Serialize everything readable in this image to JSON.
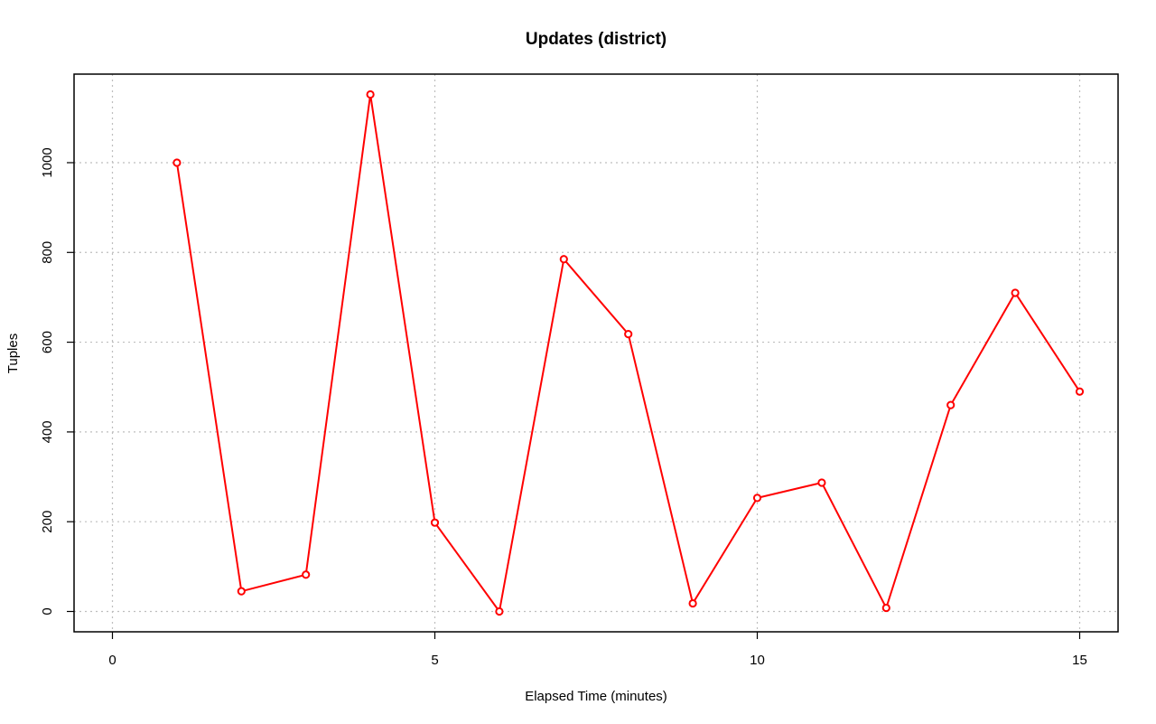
{
  "chart_data": {
    "type": "line",
    "title": "Updates (district)",
    "xlabel": "Elapsed Time (minutes)",
    "ylabel": "Tuples",
    "xlim": [
      0,
      15
    ],
    "ylim": [
      0,
      1150
    ],
    "x_ticks": [
      0,
      5,
      10,
      15
    ],
    "y_ticks": [
      0,
      200,
      400,
      600,
      800,
      1000
    ],
    "grid": true,
    "series": [
      {
        "color": "#ff0000",
        "x": [
          1,
          2,
          3,
          4,
          5,
          6,
          7,
          8,
          9,
          10,
          11,
          12,
          13,
          14,
          15
        ],
        "y": [
          1000,
          45,
          82,
          1152,
          198,
          0,
          785,
          618,
          18,
          253,
          287,
          8,
          460,
          710,
          490
        ]
      }
    ]
  }
}
